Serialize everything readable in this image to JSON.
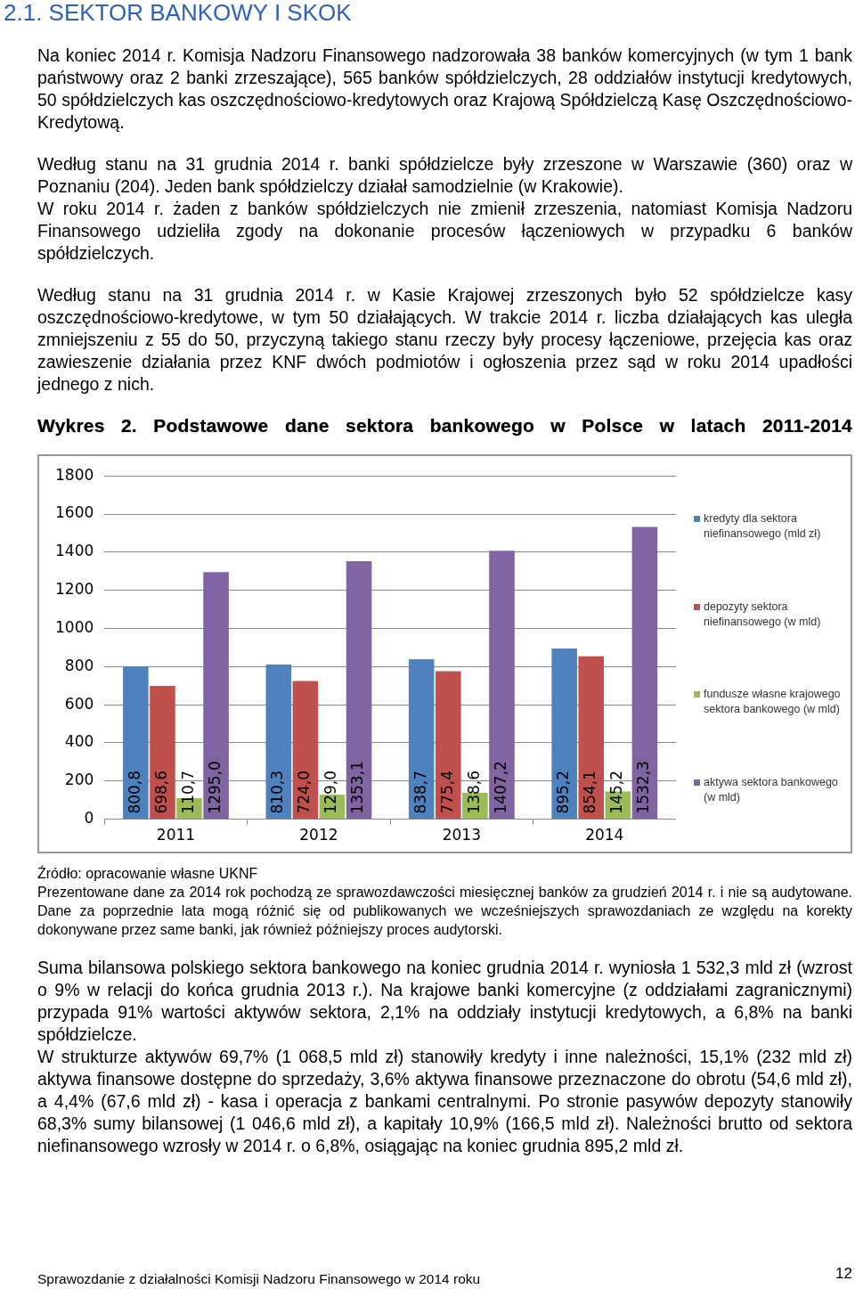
{
  "chart_data": {
    "type": "bar",
    "title": "Wykres 2. Podstawowe dane sektora bankowego w Polsce w latach 2011-2014",
    "categories": [
      "2011",
      "2012",
      "2013",
      "2014"
    ],
    "series": [
      {
        "name": "kredyty dla sektora niefinansowego (mld zł)",
        "color": "#4f81bd",
        "values": [
          800.8,
          810.3,
          838.7,
          895.2
        ],
        "value_labels": [
          "800,8",
          "810,3",
          "838,7",
          "895,2"
        ]
      },
      {
        "name": "depozyty sektora niefinansowego (w mld)",
        "color": "#c0504d",
        "values": [
          698.6,
          724.0,
          775.4,
          854.1
        ],
        "value_labels": [
          "698,6",
          "724,0",
          "775,4",
          "854,1"
        ]
      },
      {
        "name": "fundusze własne krajowego sektora bankowego (w mld)",
        "color": "#9bbb59",
        "values": [
          110.7,
          129.0,
          138.6,
          145.2
        ],
        "value_labels": [
          "110,7",
          "129,0",
          "138,6",
          "145,2"
        ]
      },
      {
        "name": "aktywa sektora bankowego (w mld)",
        "color": "#8064a2",
        "values": [
          1295.0,
          1353.1,
          1407.2,
          1532.3
        ],
        "value_labels": [
          "1295,0",
          "1353,1",
          "1407,2",
          "1532,3"
        ]
      }
    ],
    "ylim": [
      0,
      1800
    ],
    "yticks": [
      0,
      200,
      400,
      600,
      800,
      1000,
      1200,
      1400,
      1600,
      1800
    ],
    "grid": "y",
    "legend": "right",
    "annotations": [
      "2.1. SEKTOR BANKOWY I SKOK",
      "Na koniec 2014 r. Komisja Nadzoru Finansowego nadzorowała 38 banków komercyjnych (w tym 1 bank państwowy oraz 2 banki zrzeszające), 565 banków spółdzielczych, 28 oddziałów instytucji kredytowych, 50 spółdzielczych kas oszczędnościowo-kredytowych oraz Krajową Spółdzielczą Kasę Oszczędnościowo-Kredytową.",
      "Według stanu na 31 grudnia 2014 r. banki spółdzielcze były zrzeszone w Warszawie (360) oraz w Poznaniu (204). Jeden bank spółdzielczy działał samodzielnie (w Krakowie).",
      "W roku 2014 r. żaden z banków spółdzielczych nie zmienił zrzeszenia, natomiast Komisja Nadzoru Finansowego udzieliła zgody na dokonanie procesów łączeniowych w przypadku 6 banków spółdzielczych.",
      "Według stanu na 31 grudnia 2014 r. w Kasie Krajowej zrzeszonych było 52 spółdzielcze kasy oszczędnościowo-kredytowe, w tym 50 działających. W trakcie 2014 r. liczba działających kas uległa zmniejszeniu z 55 do 50, przyczyną takiego stanu rzeczy były procesy łączeniowe, przejęcia kas oraz zawieszenie działania przez KNF dwóch podmiotów i ogłoszenia przez sąd w roku 2014 upadłości jednego z nich.",
      "Źródło: opracowanie własne UKNF",
      "Prezentowane dane za 2014 rok pochodzą ze sprawozdawczości miesięcznej banków za grudzień 2014 r. i nie są audytowane. Dane za poprzednie lata mogą różnić się od publikowanych we wcześniejszych sprawozdaniach ze względu na korekty dokonywane przez same banki, jak również późniejszy proces audytorski.",
      "Suma bilansowa polskiego sektora bankowego na koniec grudnia 2014 r. wyniosła 1 532,3 mld zł (wzrost o 9% w relacji do końca grudnia 2013 r.). Na krajowe banki komercyjne (z oddziałami zagranicznymi) przypada 91% wartości aktywów sektora, 2,1% na oddziały instytucji kredytowych, a 6,8% na banki spółdzielcze.",
      "W strukturze aktywów 69,7% (1 068,5 mld zł) stanowiły kredyty i inne należności, 15,1% (232 mld zł) aktywa finansowe dostępne do sprzedaży, 3,6% aktywa finansowe przeznaczone do obrotu (54,6 mld zł), a 4,4% (67,6 mld zł) - kasa i operacja z bankami centralnymi. Po stronie pasywów depozyty stanowiły 68,3% sumy bilansowej (1 046,6 mld zł), a kapitały 10,9% (166,5 mld zł). Należności brutto od sektora niefinansowego wzrosły w 2014 r. o 6,8%, osiągając na koniec grudnia 895,2 mld zł.",
      "Sprawozdanie z działalności Komisji Nadzoru Finansowego w 2014 roku",
      "12"
    ]
  }
}
